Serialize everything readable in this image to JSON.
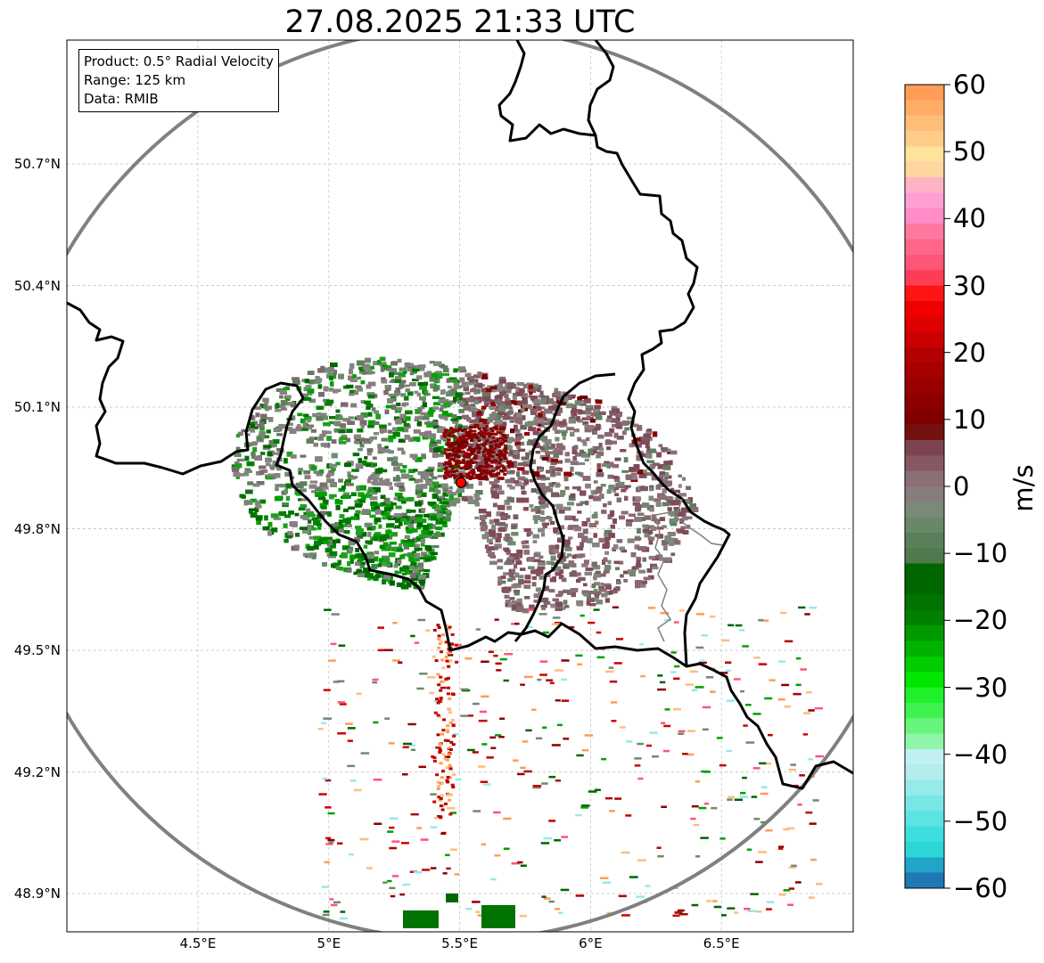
{
  "title": "27.08.2025 21:33 UTC",
  "info_box": {
    "product": "Product: 0.5° Radial Velocity",
    "range": "Range: 125 km",
    "data": "Data: RMIB"
  },
  "map": {
    "lat_ticks": [
      "50.7°N",
      "50.4°N",
      "50.1°N",
      "49.8°N",
      "49.5°N",
      "49.2°N",
      "48.9°N"
    ],
    "lon_ticks": [
      "4.5°E",
      "5°E",
      "5.5°E",
      "6°E",
      "6.5°E"
    ],
    "lat_values": [
      50.7,
      50.4,
      50.1,
      49.8,
      49.5,
      49.2,
      48.9
    ],
    "lon_values": [
      4.5,
      5.0,
      5.5,
      6.0,
      6.5
    ],
    "lon_range": [
      4.0,
      7.0
    ],
    "lat_range": [
      48.8,
      51.0
    ],
    "radar_site": {
      "lon": 5.505,
      "lat": 49.914
    },
    "range_ring_color": "#808080",
    "border_color": "#000000",
    "radar_marker_color": "#ff0000"
  },
  "colorbar": {
    "unit": "m/s",
    "ticks": [
      "60",
      "50",
      "40",
      "30",
      "20",
      "10",
      "0",
      "−10",
      "−20",
      "−30",
      "−40",
      "−50",
      "−60"
    ],
    "tick_values": [
      60,
      50,
      40,
      30,
      20,
      10,
      0,
      -10,
      -20,
      -30,
      -40,
      -50,
      -60
    ],
    "range": [
      -60,
      60
    ],
    "colors_bottom_to_top": [
      "#1f77b4",
      "#22a3c8",
      "#2bd6d6",
      "#3fdede",
      "#5ce3e3",
      "#78e6e6",
      "#95eaea",
      "#b3eded",
      "#c2f0f0",
      "#8ff5a8",
      "#66f57a",
      "#3ff24f",
      "#1ef02a",
      "#00e600",
      "#00cc00",
      "#00b300",
      "#009900",
      "#008000",
      "#007300",
      "#006600",
      "#006600",
      "#4e7a4e",
      "#5b7f5b",
      "#688868",
      "#7b897b",
      "#887d7e",
      "#8a6f74",
      "#855864",
      "#7d4450",
      "#741010",
      "#800000",
      "#8c0000",
      "#990000",
      "#a60000",
      "#b30000",
      "#cc0000",
      "#e00000",
      "#f00000",
      "#ff1414",
      "#ff3c55",
      "#ff5577",
      "#ff6688",
      "#ff78a0",
      "#ff8cc6",
      "#ff9ed2",
      "#ffb3c6",
      "#ffd6a0",
      "#ffe39a",
      "#ffcc88",
      "#ffbd7a",
      "#ffac66",
      "#ff9c55"
    ]
  }
}
